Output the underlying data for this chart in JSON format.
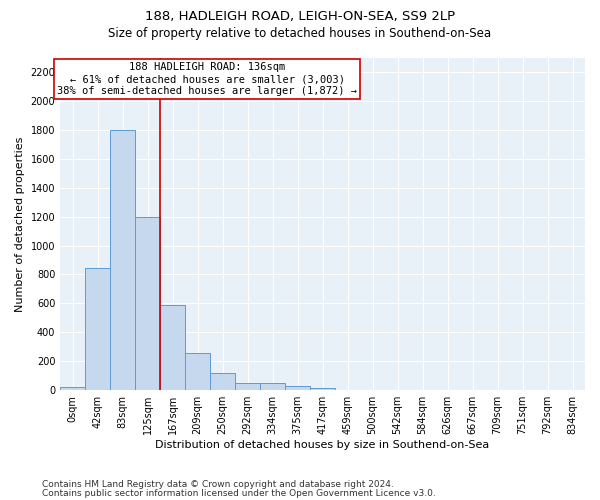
{
  "title1": "188, HADLEIGH ROAD, LEIGH-ON-SEA, SS9 2LP",
  "title2": "Size of property relative to detached houses in Southend-on-Sea",
  "xlabel": "Distribution of detached houses by size in Southend-on-Sea",
  "ylabel": "Number of detached properties",
  "footnote1": "Contains HM Land Registry data © Crown copyright and database right 2024.",
  "footnote2": "Contains public sector information licensed under the Open Government Licence v3.0.",
  "annotation_line1": "188 HADLEIGH ROAD: 136sqm",
  "annotation_line2": "← 61% of detached houses are smaller (3,003)",
  "annotation_line3": "38% of semi-detached houses are larger (1,872) →",
  "bar_color": "#c5d8ed",
  "bar_edge_color": "#5b9bd5",
  "vline_color": "#cc0000",
  "annotation_box_color": "#cc0000",
  "background_color": "#e8f0f8",
  "tick_labels": [
    "0sqm",
    "42sqm",
    "83sqm",
    "125sqm",
    "167sqm",
    "209sqm",
    "250sqm",
    "292sqm",
    "334sqm",
    "375sqm",
    "417sqm",
    "459sqm",
    "500sqm",
    "542sqm",
    "584sqm",
    "626sqm",
    "667sqm",
    "709sqm",
    "751sqm",
    "792sqm",
    "834sqm"
  ],
  "bar_values": [
    25,
    845,
    1800,
    1200,
    590,
    255,
    120,
    47,
    47,
    30,
    15,
    0,
    0,
    0,
    0,
    0,
    0,
    0,
    0,
    0,
    0
  ],
  "vline_x": 3.5,
  "ylim": [
    0,
    2300
  ],
  "yticks": [
    0,
    200,
    400,
    600,
    800,
    1000,
    1200,
    1400,
    1600,
    1800,
    2000,
    2200
  ],
  "title1_fontsize": 9.5,
  "title2_fontsize": 8.5,
  "xlabel_fontsize": 8,
  "ylabel_fontsize": 8,
  "tick_fontsize": 7,
  "annotation_fontsize": 7.5,
  "footnote_fontsize": 6.5
}
